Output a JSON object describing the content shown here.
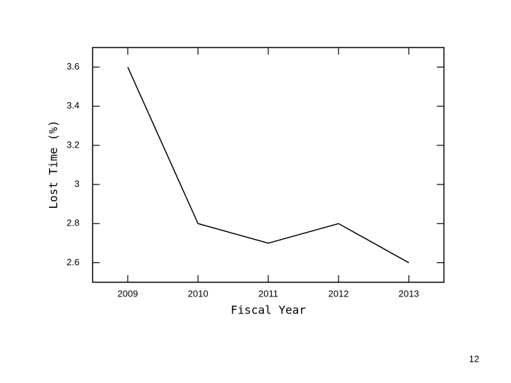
{
  "chart_data": {
    "type": "line",
    "x_label": "Fiscal Year",
    "y_label": "Lost Time (%)",
    "x": [
      2009,
      2010,
      2011,
      2012,
      2013
    ],
    "values": [
      3.6,
      2.8,
      2.7,
      2.8,
      2.6
    ],
    "color": "#000000",
    "xlim": [
      2008.5,
      2013.5
    ],
    "xticks": [
      2009,
      2010,
      2011,
      2012,
      2013
    ],
    "ylim": [
      2.5,
      3.7
    ],
    "yticks": [
      2.6,
      2.8,
      3,
      3.2,
      3.4,
      3.6
    ],
    "grid": false
  },
  "slide_number": 12
}
